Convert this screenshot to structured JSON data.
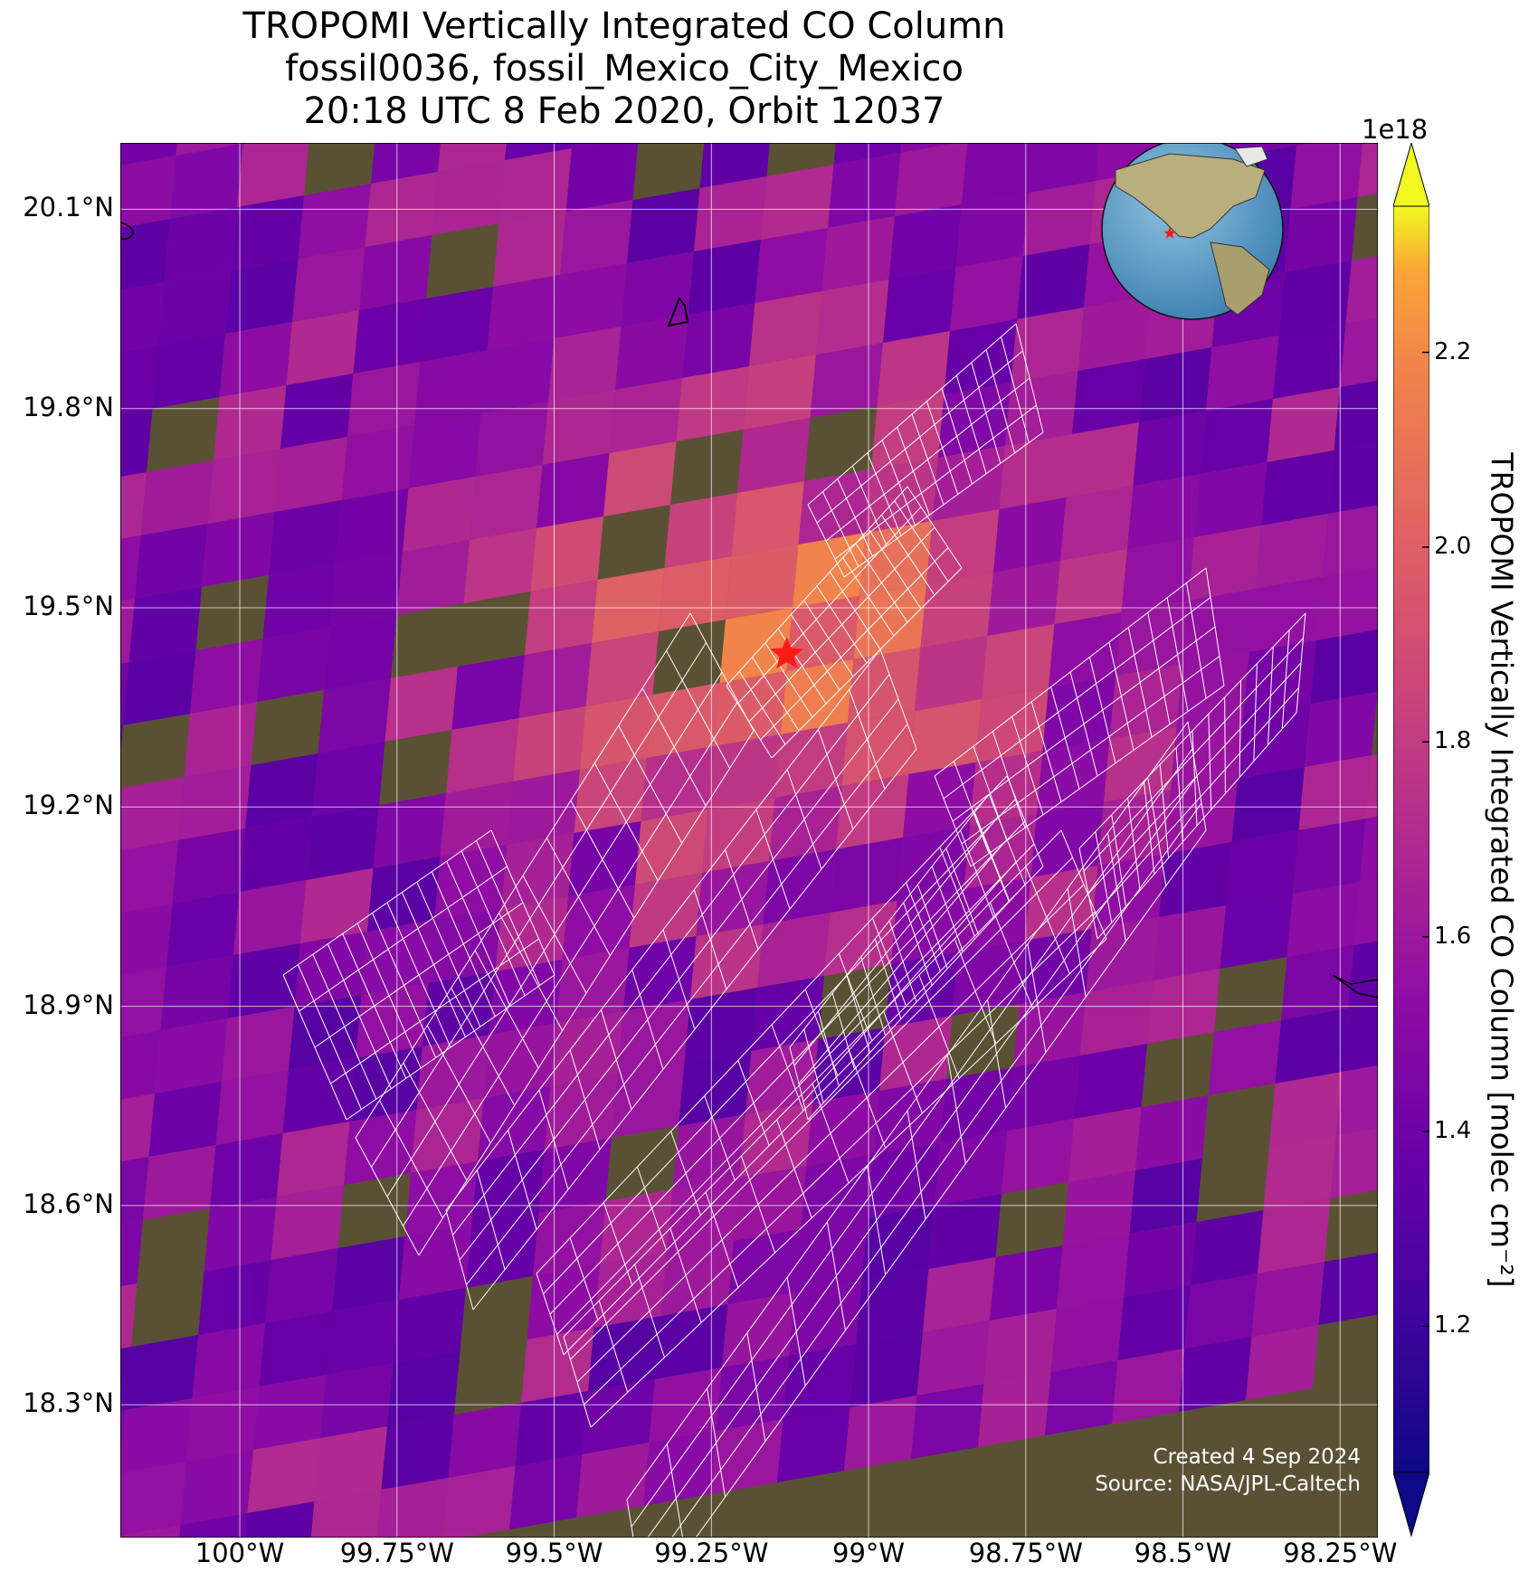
{
  "title": {
    "line1": "TROPOMI Vertically Integrated CO Column",
    "line2": "fossil0036, fossil_Mexico_City_Mexico",
    "line3": "20:18 UTC 8 Feb 2020, Orbit 12037"
  },
  "map": {
    "lat_range": [
      18.1,
      20.2
    ],
    "lon_range": [
      -100.19,
      -98.19
    ],
    "site": {
      "lat": 19.43,
      "lon": -99.13,
      "marker": "red-star"
    },
    "lat_ticks": [
      {
        "value": 20.1,
        "label": "20.1°N"
      },
      {
        "value": 19.8,
        "label": "19.8°N"
      },
      {
        "value": 19.5,
        "label": "19.5°N"
      },
      {
        "value": 19.2,
        "label": "19.2°N"
      },
      {
        "value": 18.9,
        "label": "18.9°N"
      },
      {
        "value": 18.6,
        "label": "18.6°N"
      },
      {
        "value": 18.3,
        "label": "18.3°N"
      }
    ],
    "lon_ticks": [
      {
        "value": -100.0,
        "label": "100°W"
      },
      {
        "value": -99.75,
        "label": "99.75°W"
      },
      {
        "value": -99.5,
        "label": "99.5°W"
      },
      {
        "value": -99.25,
        "label": "99.25°W"
      },
      {
        "value": -99.0,
        "label": "99°W"
      },
      {
        "value": -98.75,
        "label": "98.75°W"
      },
      {
        "value": -98.5,
        "label": "98.5°W"
      },
      {
        "value": -98.25,
        "label": "98.25°W"
      }
    ],
    "gridlines": true,
    "inset_globe": "top-right"
  },
  "colorbar": {
    "label": "TROPOMI Vertically Integrated CO Column [molec cm⁻²]",
    "exponent": "1e18",
    "min": 1.05,
    "max": 2.35,
    "colormap": "plasma",
    "ticks": [
      {
        "value": 1.2,
        "label": "1.2"
      },
      {
        "value": 1.4,
        "label": "1.4"
      },
      {
        "value": 1.6,
        "label": "1.6"
      },
      {
        "value": 1.8,
        "label": "1.8"
      },
      {
        "value": 2.0,
        "label": "2.0"
      },
      {
        "value": 2.2,
        "label": "2.2"
      }
    ]
  },
  "credits": {
    "created": "Created 4 Sep 2024",
    "source": "Source: NASA/JPL-Caltech"
  }
}
